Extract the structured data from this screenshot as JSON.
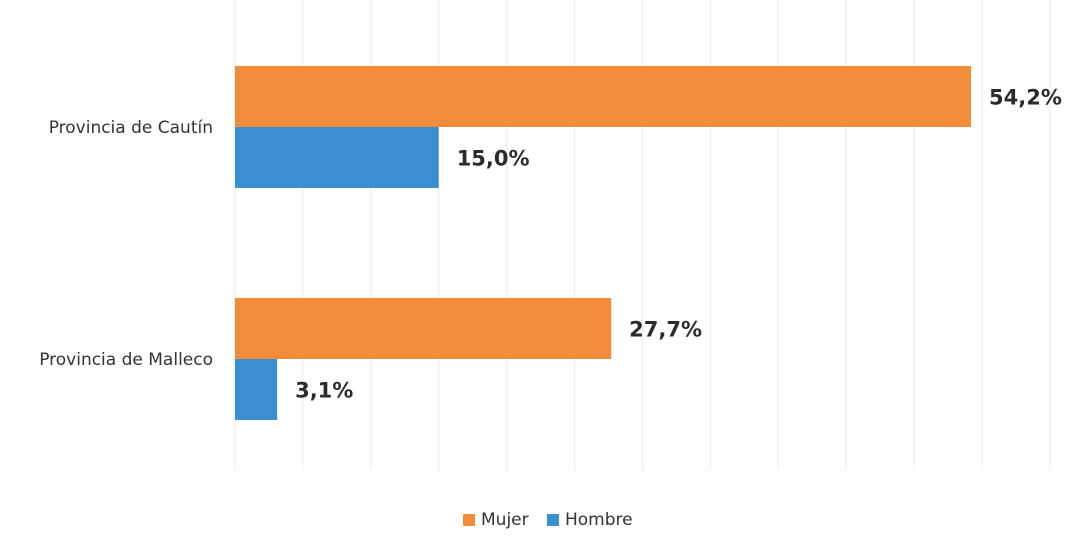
{
  "chart_data": {
    "type": "bar",
    "orientation": "horizontal",
    "title": "",
    "xlabel": "",
    "ylabel": "",
    "categories": [
      "Provincia de Cautín",
      "Provincia de Malleco"
    ],
    "series": [
      {
        "name": "Mujer",
        "color": "#f28c3a",
        "values": [
          54.2,
          27.7
        ],
        "labels": [
          "54,2%",
          "27,7%"
        ]
      },
      {
        "name": "Hombre",
        "color": "#3a8fd1",
        "values": [
          15.0,
          3.1
        ],
        "labels": [
          "15,0%",
          "3,1%"
        ]
      }
    ],
    "xlim": [
      0,
      60
    ],
    "grid": true,
    "legend_position": "bottom"
  }
}
